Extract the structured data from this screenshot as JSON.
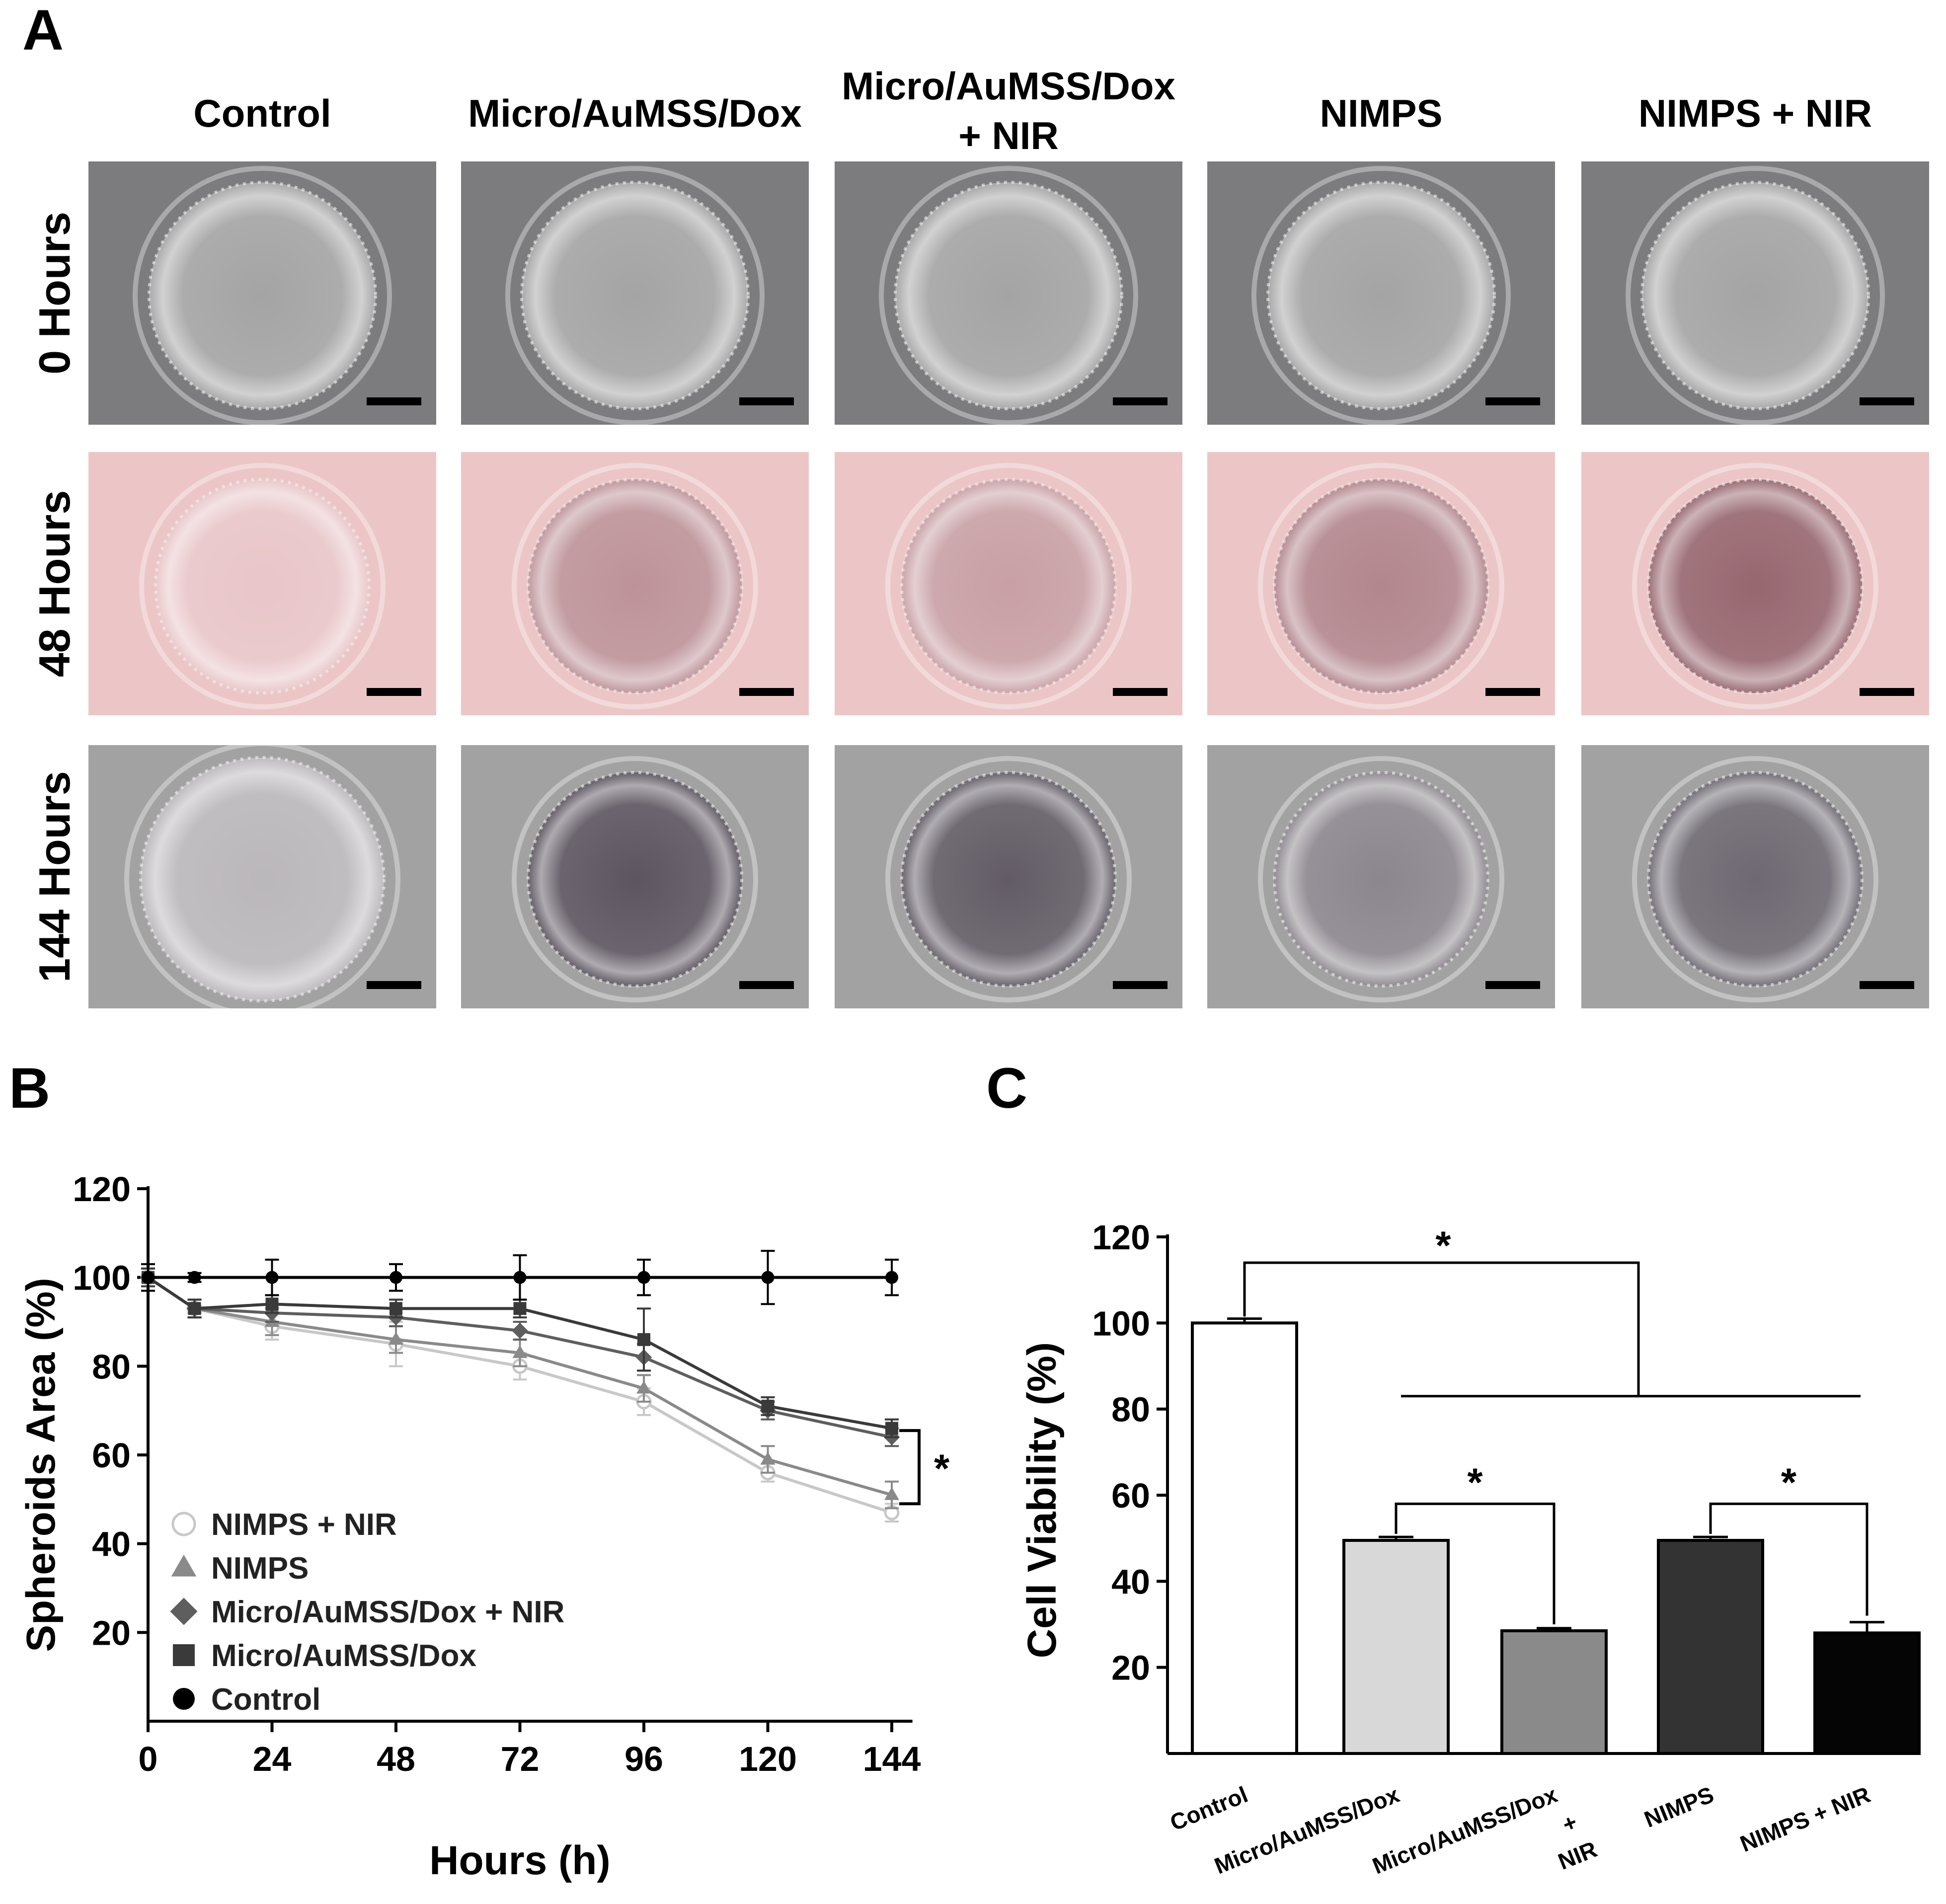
{
  "panels": {
    "A": {
      "label": "A",
      "columns": [
        "Control",
        "Micro/AuMSS/Dox",
        "Micro/AuMSS/Dox + NIR",
        "NIMPS",
        "NIMPS + NIR"
      ],
      "column_label_lines": [
        [
          "Control"
        ],
        [
          "Micro/AuMSS/Dox"
        ],
        [
          "Micro/AuMSS/Dox",
          "+ NIR"
        ],
        [
          "NIMPS"
        ],
        [
          "NIMPS + NIR"
        ]
      ],
      "rows": [
        "0 Hours",
        "48 Hours",
        "144 Hours"
      ],
      "row_colors": {
        "bg": [
          "#7c7c7e",
          "#ecc6c6",
          "#a2a2a2"
        ]
      },
      "spheroid_darkness": [
        [
          0.05,
          0.05,
          0.05,
          0.05,
          0.05
        ],
        [
          0.05,
          0.45,
          0.35,
          0.55,
          0.8
        ],
        [
          0.05,
          0.85,
          0.8,
          0.45,
          0.7
        ]
      ]
    },
    "B": {
      "label": "B"
    },
    "C": {
      "label": "C"
    }
  },
  "chart_data": [
    {
      "type": "line",
      "panel": "B",
      "xlabel": "Hours (h)",
      "ylabel": "Spheroids Area (%)",
      "xlim": [
        0,
        148
      ],
      "ylim": [
        0,
        120
      ],
      "xticks": [
        0,
        24,
        48,
        72,
        96,
        120,
        144
      ],
      "yticks": [
        20,
        40,
        60,
        80,
        100,
        120
      ],
      "x": [
        0,
        9,
        24,
        48,
        72,
        96,
        120,
        144
      ],
      "legend_position": "lower-left",
      "series": [
        {
          "name": "NIMPS + NIR",
          "marker": "circle-open",
          "color": "#c8c8c8",
          "values": [
            100,
            93,
            89,
            85,
            80,
            72,
            56,
            47
          ],
          "errors": [
            2,
            2,
            3,
            5,
            3,
            3,
            2,
            2
          ]
        },
        {
          "name": "NIMPS",
          "marker": "triangle",
          "color": "#8a8a8a",
          "values": [
            100,
            93,
            90,
            86,
            83,
            75,
            59,
            51
          ],
          "errors": [
            2,
            2,
            3,
            3,
            3,
            3,
            3,
            3
          ]
        },
        {
          "name": "Micro/AuMSS/Dox + NIR",
          "marker": "diamond",
          "color": "#5e5e5e",
          "values": [
            100,
            93,
            92,
            91,
            88,
            82,
            70,
            64
          ],
          "errors": [
            2,
            2,
            2,
            2,
            2,
            3,
            2,
            2
          ]
        },
        {
          "name": "Micro/AuMSS/Dox",
          "marker": "square",
          "color": "#3a3a3a",
          "values": [
            100,
            93,
            94,
            93,
            93,
            86,
            71,
            66
          ],
          "errors": [
            2,
            2,
            2,
            2,
            2,
            7,
            2,
            2
          ]
        },
        {
          "name": "Control",
          "marker": "circle",
          "color": "#000000",
          "values": [
            100,
            100,
            100,
            100,
            100,
            100,
            100,
            100
          ],
          "errors": [
            3,
            1,
            4,
            3,
            5,
            4,
            6,
            4
          ]
        }
      ],
      "annotations": [
        "*"
      ]
    },
    {
      "type": "bar",
      "panel": "C",
      "ylabel": "Cell Viability (%)",
      "ylim": [
        0,
        120
      ],
      "yticks": [
        20,
        40,
        60,
        80,
        100,
        120
      ],
      "categories": [
        "Control",
        "Micro/AuMSS/Dox",
        "Micro/AuMSS/Dox + NIR",
        "NIMPS",
        "NIMPS + NIR"
      ],
      "category_label_lines": [
        [
          "Control"
        ],
        [
          "Micro/AuMSS/Dox"
        ],
        [
          "Micro/AuMSS/Dox",
          "+",
          "NIR"
        ],
        [
          "NIMPS"
        ],
        [
          "NIMPS + NIR"
        ]
      ],
      "values": [
        100,
        49.5,
        28.5,
        49.5,
        28
      ],
      "errors": [
        1,
        0.8,
        0.6,
        0.8,
        2.5
      ],
      "colors": [
        "#ffffff",
        "#d8d8d8",
        "#8a8a8a",
        "#333333",
        "#050505"
      ],
      "annotations": [
        "*",
        "*",
        "*"
      ]
    }
  ]
}
